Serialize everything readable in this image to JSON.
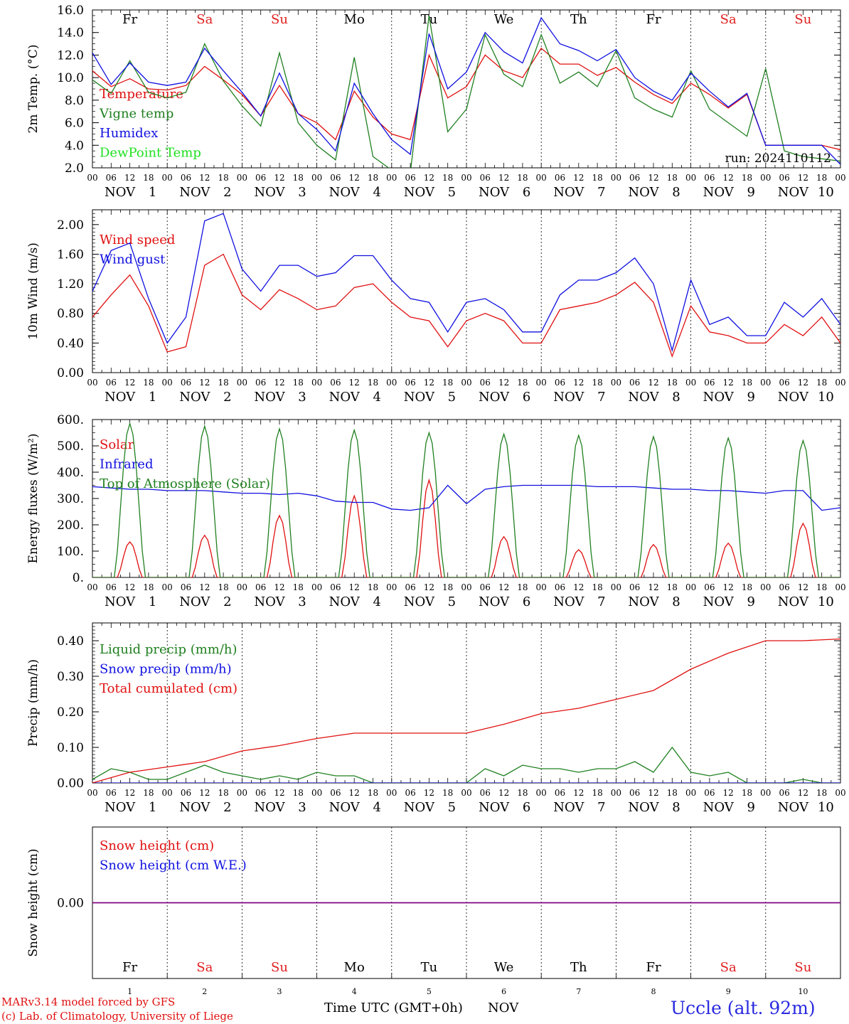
{
  "day_names": [
    "Fr",
    "Sa",
    "Su",
    "Mo",
    "Tu",
    "We",
    "Th",
    "Fr",
    "Sa",
    "Su"
  ],
  "day_numbers": [
    "1",
    "2",
    "3",
    "4",
    "5",
    "6",
    "7",
    "8",
    "9",
    "10"
  ],
  "hour_ticks": [
    "00",
    "06",
    "12",
    "18"
  ],
  "month": "NOV",
  "colors": {
    "weekday": "#000000",
    "weekend": "#e02020",
    "red": "#e01010",
    "green": "#208020",
    "blue": "#1010e0",
    "lime": "#20e020",
    "purple": "#800080"
  },
  "chart_data": [
    {
      "type": "line",
      "ylabel": "2m Temp. (°C)",
      "ylim": [
        2.0,
        16.0
      ],
      "yticks": [
        "2.0",
        "4.0",
        "6.0",
        "8.0",
        "10.0",
        "12.0",
        "14.0",
        "16.0"
      ],
      "x_unit": "hours since NOV 1 00 UTC",
      "annotation": "run: 2024110112",
      "series": [
        {
          "name": "Temperature",
          "color": "red",
          "x": [
            0,
            6,
            12,
            18,
            24,
            30,
            36,
            42,
            48,
            54,
            60,
            66,
            72,
            78,
            84,
            90,
            96,
            102,
            108,
            114,
            120,
            126,
            132,
            138,
            144,
            150,
            156,
            162,
            168,
            174,
            180,
            186,
            192,
            198,
            204,
            210,
            216,
            222,
            228,
            234,
            240
          ],
          "values": [
            10.6,
            9.2,
            9.9,
            9.0,
            8.9,
            9.3,
            11.0,
            9.8,
            8.5,
            6.6,
            9.3,
            6.8,
            6.0,
            4.5,
            8.8,
            6.5,
            5.0,
            4.5,
            12.0,
            8.2,
            9.2,
            12.0,
            10.6,
            10.0,
            12.6,
            11.2,
            11.2,
            10.2,
            10.9,
            9.6,
            8.5,
            7.7,
            9.5,
            8.5,
            7.3,
            8.5,
            4.0,
            4.0,
            4.0,
            4.0,
            3.6
          ]
        },
        {
          "name": "Vigne temp",
          "color": "green",
          "x": [
            0,
            6,
            12,
            18,
            24,
            30,
            36,
            42,
            48,
            54,
            60,
            66,
            72,
            78,
            84,
            90,
            96,
            102,
            108,
            114,
            120,
            126,
            132,
            138,
            144,
            150,
            156,
            162,
            168,
            174,
            180,
            186,
            192,
            198,
            204,
            210,
            216,
            222,
            228,
            234,
            240
          ],
          "values": [
            9.8,
            8.6,
            11.5,
            8.7,
            8.2,
            8.7,
            13.0,
            9.7,
            7.5,
            5.7,
            12.2,
            6.0,
            4.0,
            2.7,
            11.8,
            3.0,
            1.8,
            1.6,
            15.5,
            5.2,
            7.2,
            13.8,
            10.3,
            9.2,
            13.8,
            9.5,
            10.5,
            9.2,
            12.4,
            8.2,
            7.2,
            6.5,
            10.6,
            7.2,
            6.0,
            4.8,
            10.8,
            3.5,
            3.0,
            2.8,
            2.6
          ]
        },
        {
          "name": "Humidex",
          "color": "blue",
          "x": [
            0,
            6,
            12,
            18,
            24,
            30,
            36,
            42,
            48,
            54,
            60,
            66,
            72,
            78,
            84,
            90,
            96,
            102,
            108,
            114,
            120,
            126,
            132,
            138,
            144,
            150,
            156,
            162,
            168,
            174,
            180,
            186,
            192,
            198,
            204,
            210,
            216,
            222,
            228,
            234,
            240
          ],
          "values": [
            12.2,
            9.4,
            11.3,
            9.6,
            9.3,
            9.6,
            12.6,
            10.6,
            8.7,
            6.6,
            10.4,
            6.8,
            5.4,
            3.5,
            9.5,
            6.8,
            4.5,
            3.2,
            13.9,
            9.0,
            10.5,
            14.0,
            12.3,
            11.3,
            15.3,
            13.0,
            12.4,
            11.5,
            12.5,
            10.0,
            8.8,
            8.0,
            10.4,
            8.8,
            7.4,
            8.6,
            4.0,
            4.0,
            4.0,
            4.0,
            2.3
          ]
        },
        {
          "name": "DewPoint Temp",
          "color": "lime",
          "x": [],
          "values": []
        }
      ]
    },
    {
      "type": "line",
      "ylabel": "10m Wind (m/s)",
      "ylim": [
        0.0,
        2.2
      ],
      "yticks": [
        "0.00",
        "0.40",
        "0.80",
        "1.20",
        "1.60",
        "2.00"
      ],
      "x_unit": "hours since NOV 1 00 UTC",
      "series": [
        {
          "name": "Wind speed",
          "color": "red",
          "x": [
            0,
            6,
            12,
            18,
            24,
            30,
            36,
            42,
            48,
            54,
            60,
            66,
            72,
            78,
            84,
            90,
            96,
            102,
            108,
            114,
            120,
            126,
            132,
            138,
            144,
            150,
            156,
            162,
            168,
            174,
            180,
            186,
            192,
            198,
            204,
            210,
            216,
            222,
            228,
            234,
            240
          ],
          "values": [
            0.75,
            1.05,
            1.32,
            0.9,
            0.28,
            0.35,
            1.45,
            1.6,
            1.05,
            0.85,
            1.12,
            1.0,
            0.85,
            0.9,
            1.15,
            1.2,
            0.95,
            0.75,
            0.7,
            0.35,
            0.7,
            0.8,
            0.7,
            0.4,
            0.4,
            0.85,
            0.9,
            0.95,
            1.05,
            1.22,
            0.95,
            0.22,
            0.9,
            0.55,
            0.5,
            0.4,
            0.4,
            0.65,
            0.5,
            0.75,
            0.4
          ]
        },
        {
          "name": "Wind gust",
          "color": "blue",
          "x": [
            0,
            6,
            12,
            18,
            24,
            30,
            36,
            42,
            48,
            54,
            60,
            66,
            72,
            78,
            84,
            90,
            96,
            102,
            108,
            114,
            120,
            126,
            132,
            138,
            144,
            150,
            156,
            162,
            168,
            174,
            180,
            186,
            192,
            198,
            204,
            210,
            216,
            222,
            228,
            234,
            240
          ],
          "values": [
            1.1,
            1.65,
            1.75,
            1.0,
            0.4,
            0.75,
            2.05,
            2.15,
            1.4,
            1.1,
            1.45,
            1.45,
            1.3,
            1.35,
            1.58,
            1.58,
            1.25,
            1.0,
            0.95,
            0.55,
            0.95,
            1.0,
            0.85,
            0.55,
            0.55,
            1.05,
            1.25,
            1.25,
            1.35,
            1.55,
            1.2,
            0.3,
            1.25,
            0.65,
            0.75,
            0.5,
            0.5,
            0.95,
            0.75,
            1.0,
            0.65
          ]
        }
      ]
    },
    {
      "type": "line",
      "ylabel": "Energy fluxes (W/m²)",
      "ylim": [
        0,
        600
      ],
      "yticks": [
        "0.",
        "100.",
        "200.",
        "300.",
        "400.",
        "500.",
        "600."
      ],
      "x_unit": "hours since NOV 1 00 UTC",
      "series": [
        {
          "name": "Solar",
          "color": "red",
          "daily_peak_hour": 12,
          "peaks": [
            135,
            160,
            235,
            310,
            370,
            155,
            105,
            125,
            130,
            205
          ]
        },
        {
          "name": "Infrared",
          "color": "blue",
          "x": [
            0,
            6,
            12,
            18,
            24,
            30,
            36,
            42,
            48,
            54,
            60,
            66,
            72,
            78,
            84,
            90,
            96,
            102,
            108,
            114,
            120,
            126,
            132,
            138,
            144,
            150,
            156,
            162,
            168,
            174,
            180,
            186,
            192,
            198,
            204,
            210,
            216,
            222,
            228,
            234,
            240
          ],
          "values": [
            345,
            340,
            335,
            335,
            330,
            330,
            330,
            325,
            320,
            320,
            315,
            320,
            310,
            290,
            285,
            285,
            260,
            255,
            265,
            350,
            280,
            335,
            345,
            350,
            350,
            350,
            350,
            345,
            345,
            345,
            340,
            335,
            335,
            330,
            330,
            325,
            320,
            330,
            330,
            255,
            265
          ]
        },
        {
          "name": "Top of Atmosphere (Solar)",
          "color": "green",
          "daily_peak_hour": 12,
          "peaks": [
            585,
            575,
            565,
            560,
            550,
            545,
            540,
            535,
            530,
            520
          ]
        }
      ]
    },
    {
      "type": "line",
      "ylabel": "Precip (mm/h)",
      "ylim": [
        0.0,
        0.45
      ],
      "yticks": [
        "0.00",
        "0.10",
        "0.20",
        "0.30",
        "0.40"
      ],
      "x_unit": "hours since NOV 1 00 UTC",
      "series": [
        {
          "name": "Liquid precip (mm/h)",
          "color": "green",
          "x": [
            0,
            6,
            12,
            18,
            24,
            30,
            36,
            42,
            48,
            54,
            60,
            66,
            72,
            78,
            84,
            90,
            96,
            102,
            108,
            114,
            120,
            126,
            132,
            138,
            144,
            150,
            156,
            162,
            168,
            174,
            180,
            186,
            192,
            198,
            204,
            210,
            216,
            222,
            228,
            234,
            240
          ],
          "values": [
            0.01,
            0.04,
            0.03,
            0.01,
            0.01,
            0.03,
            0.05,
            0.03,
            0.02,
            0.01,
            0.02,
            0.01,
            0.03,
            0.02,
            0.02,
            0.0,
            0.0,
            0.0,
            0.0,
            0.0,
            0.0,
            0.04,
            0.02,
            0.05,
            0.04,
            0.04,
            0.03,
            0.04,
            0.04,
            0.06,
            0.03,
            0.1,
            0.03,
            0.02,
            0.03,
            0.0,
            0.0,
            0.0,
            0.01,
            0.0,
            0.0
          ]
        },
        {
          "name": "Snow precip (mm/h)",
          "color": "blue",
          "x": [
            0,
            240
          ],
          "values": [
            0.0,
            0.0
          ]
        },
        {
          "name": "Total cumulated (cm)",
          "color": "red",
          "x": [
            0,
            12,
            24,
            36,
            48,
            60,
            72,
            84,
            96,
            108,
            120,
            132,
            144,
            156,
            168,
            180,
            192,
            204,
            216,
            228,
            240
          ],
          "values": [
            0.0,
            0.03,
            0.045,
            0.06,
            0.09,
            0.105,
            0.125,
            0.14,
            0.14,
            0.14,
            0.14,
            0.165,
            0.195,
            0.21,
            0.235,
            0.26,
            0.32,
            0.365,
            0.4,
            0.4,
            0.405
          ]
        }
      ]
    },
    {
      "type": "line",
      "ylabel": "Snow height (cm)",
      "ylim": [
        -1.0,
        1.0
      ],
      "yticks": [
        "0.00"
      ],
      "x_unit": "hours since NOV 1 00 UTC",
      "xlabel": "Time UTC (GMT+0h) NOV",
      "series": [
        {
          "name": "Snow height (cm)",
          "color": "red",
          "x": [
            0,
            240
          ],
          "values": [
            0.0,
            0.0
          ]
        },
        {
          "name": "Snow height (cm W.E.)",
          "color": "blue",
          "x": [
            0,
            240
          ],
          "values": [
            0.0,
            0.0
          ]
        }
      ]
    }
  ],
  "footer": {
    "model": "MARv3.14 model forced by GFS",
    "credit": "(c) Lab. of Climatology, University of Liege",
    "xlabel": "Time UTC (GMT+0h)",
    "month": "NOV",
    "station": "Uccle (alt. 92m)"
  }
}
